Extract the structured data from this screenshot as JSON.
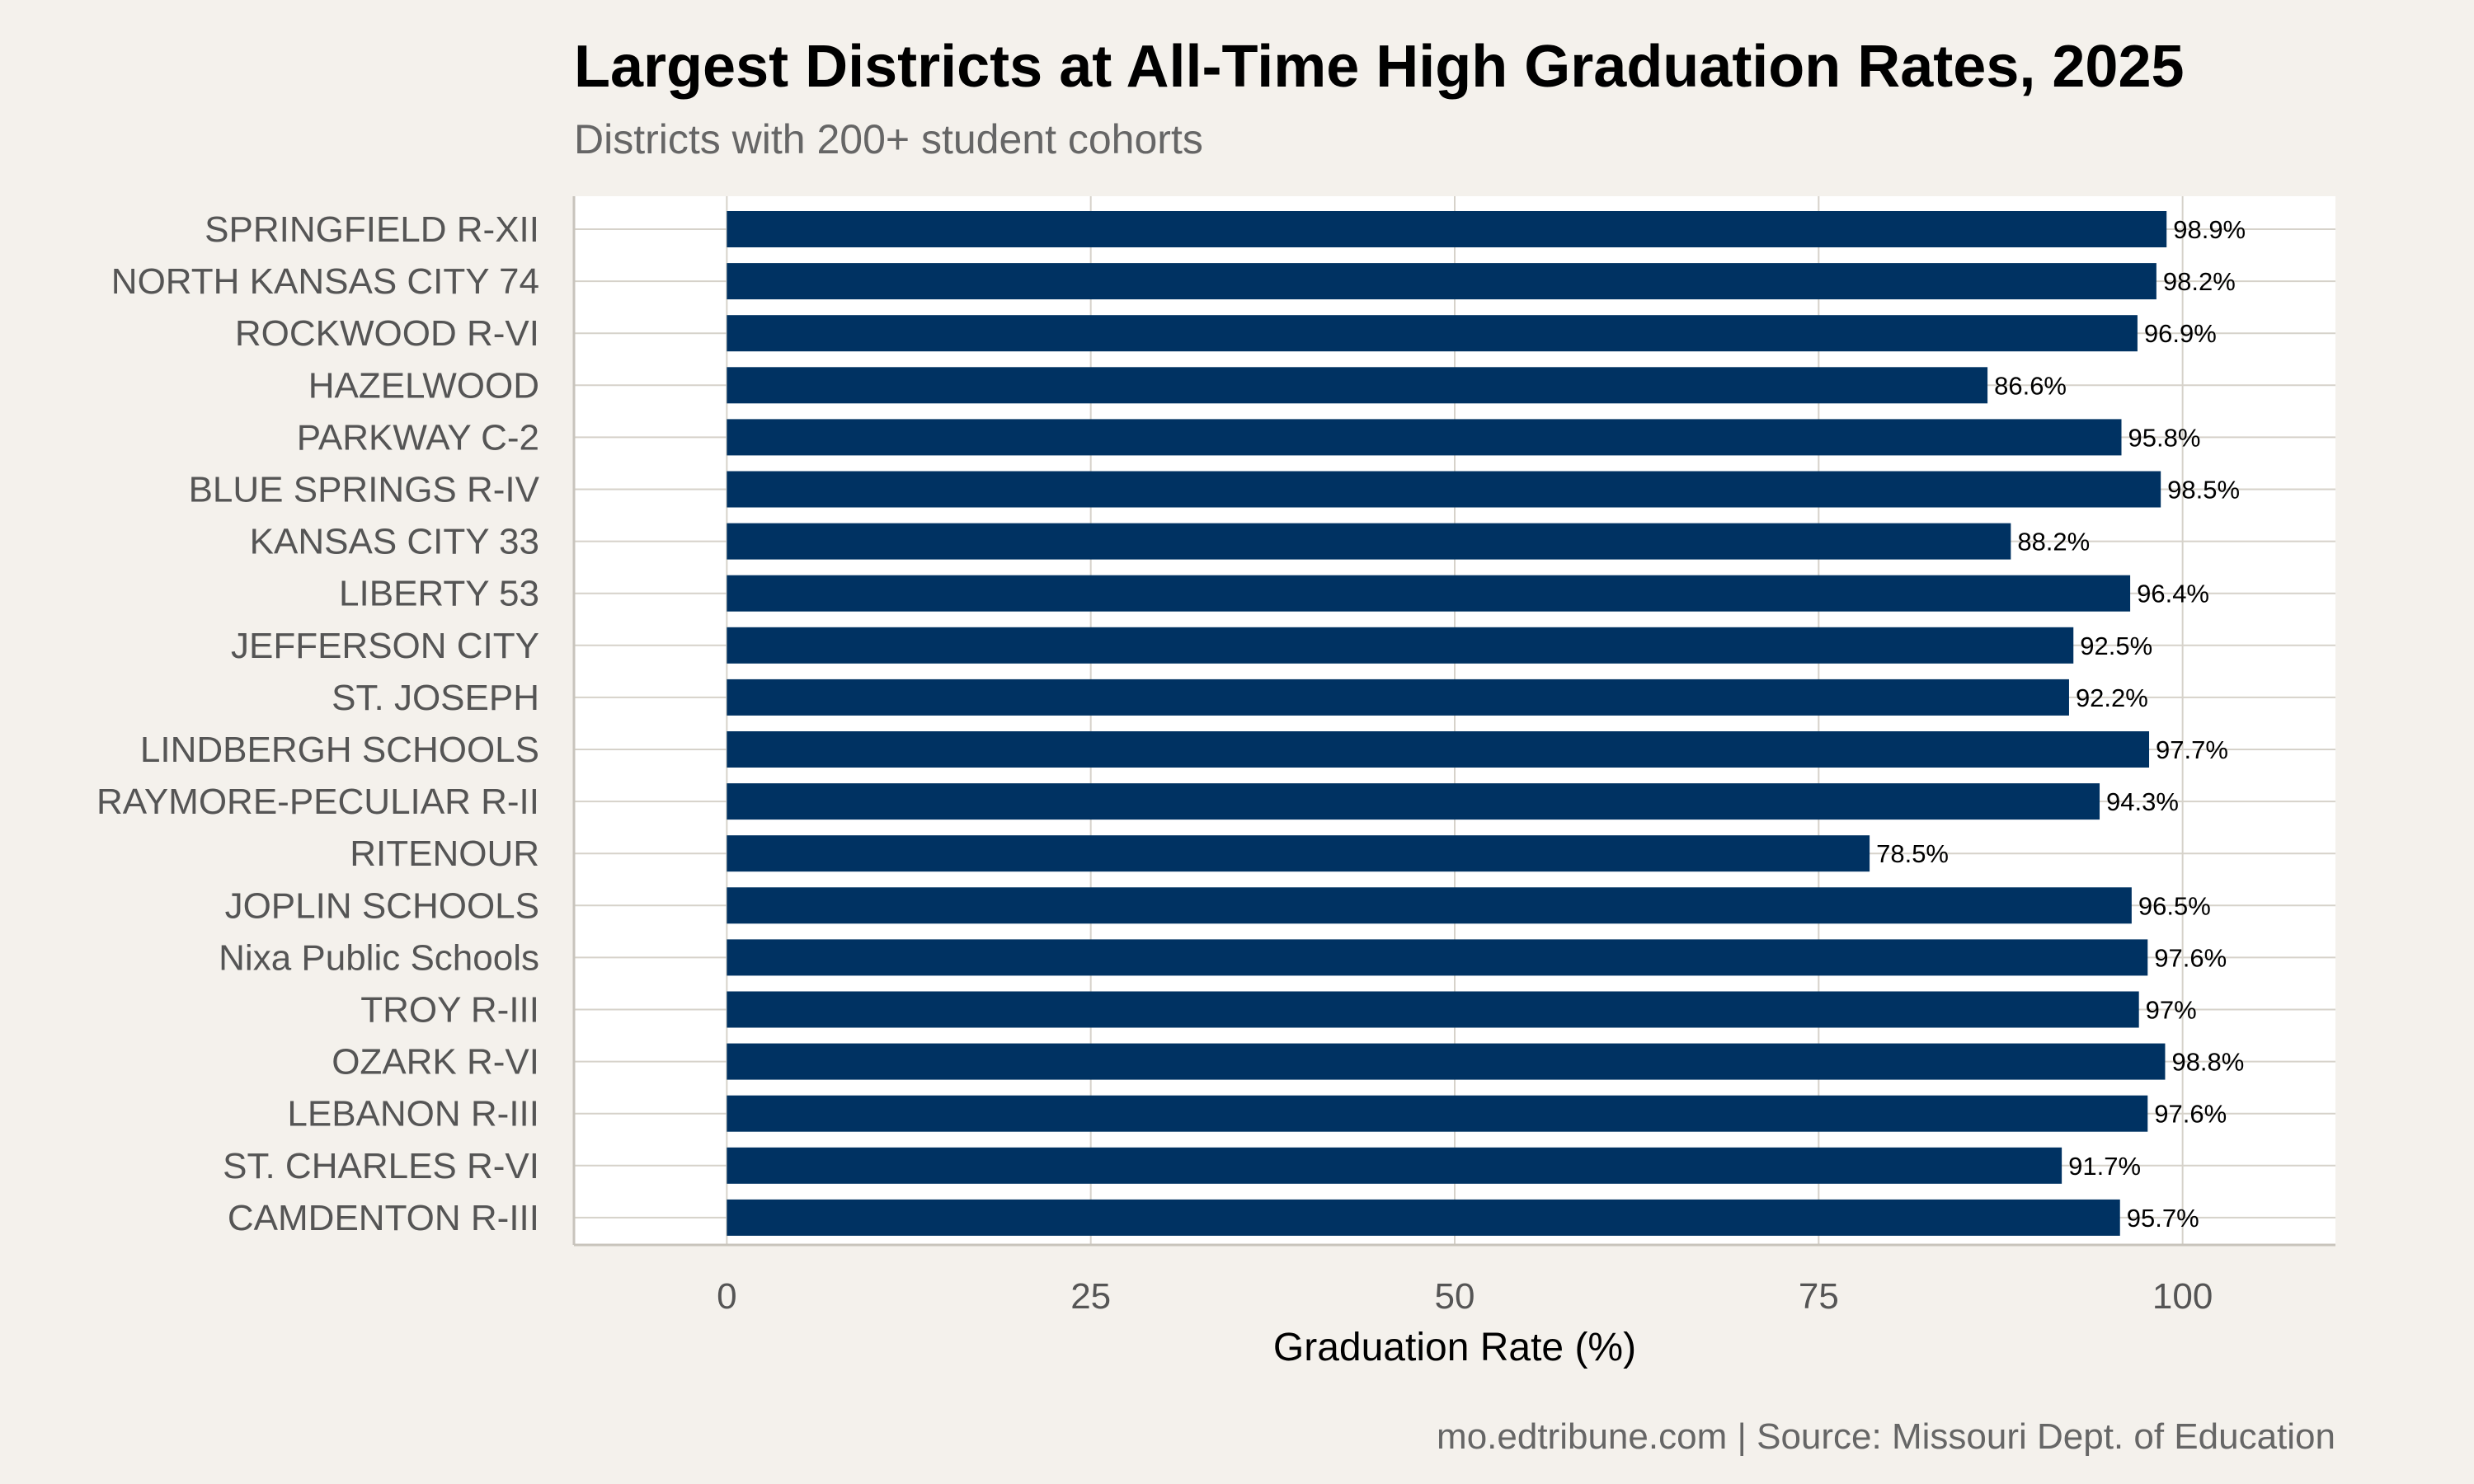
{
  "chart_data": {
    "type": "bar",
    "orientation": "horizontal",
    "title": "Largest Districts at All-Time High Graduation Rates, 2025",
    "subtitle": "Districts with 200+ student cohorts",
    "xlabel": "Graduation Rate (%)",
    "ylabel": "",
    "xlim": [
      -10.5,
      110.5
    ],
    "xticks": [
      0,
      25,
      50,
      75,
      100
    ],
    "xtick_labels": [
      "0",
      "25",
      "50",
      "75",
      "100"
    ],
    "grid": true,
    "legend": "none",
    "bar_color": "#003262",
    "categories": [
      "SPRINGFIELD R-XII",
      "NORTH KANSAS CITY 74",
      "ROCKWOOD R-VI",
      "HAZELWOOD",
      "PARKWAY C-2",
      "BLUE SPRINGS R-IV",
      "KANSAS CITY 33",
      "LIBERTY 53",
      "JEFFERSON CITY",
      "ST. JOSEPH",
      "LINDBERGH SCHOOLS",
      "RAYMORE-PECULIAR R-II",
      "RITENOUR",
      "JOPLIN SCHOOLS",
      "Nixa Public Schools",
      "TROY R-III",
      "OZARK R-VI",
      "LEBANON R-III",
      "ST. CHARLES R-VI",
      "CAMDENTON R-III"
    ],
    "values": [
      98.9,
      98.2,
      96.9,
      86.6,
      95.8,
      98.5,
      88.2,
      96.4,
      92.5,
      92.2,
      97.7,
      94.3,
      78.5,
      96.5,
      97.6,
      97,
      98.8,
      97.6,
      91.7,
      95.7
    ],
    "value_labels": [
      "98.9%",
      "98.2%",
      "96.9%",
      "86.6%",
      "95.8%",
      "98.5%",
      "88.2%",
      "96.4%",
      "92.5%",
      "92.2%",
      "97.7%",
      "94.3%",
      "78.5%",
      "96.5%",
      "97.6%",
      "97%",
      "98.8%",
      "97.6%",
      "91.7%",
      "95.7%"
    ],
    "caption": "mo.edtribune.com | Source: Missouri Dept. of Education"
  },
  "colors": {
    "background": "#f4f1ec",
    "panel": "#ffffff",
    "grid": "#d6d2ca",
    "bar": "#003262",
    "title": "#000000",
    "muted_text": "#666666"
  }
}
